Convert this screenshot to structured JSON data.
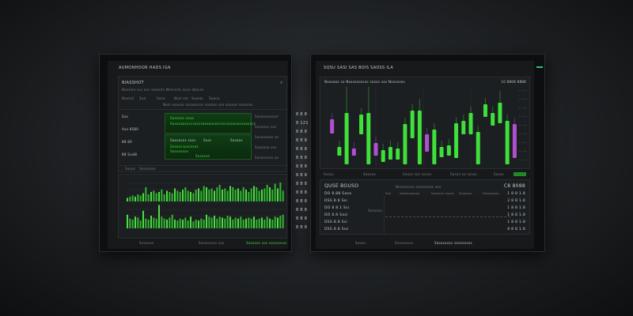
{
  "left": {
    "title": "AUMONHOOR HADS IGA",
    "panel_title": "BIASSHOT",
    "panel_subtitle": "Nsoslse ssc osc soascts Mrerscts scso sbocss",
    "filters": [
      "Nosnol",
      "Soa",
      "Saca",
      "Nosl sol",
      "Soasio",
      "Soaca"
    ],
    "header_strip": "Nosl soasos sosaoscos sosoos sos soasos sosasos",
    "side_rows": [
      "Sso",
      "Aso 8580",
      "88 80",
      "88 Sso8l"
    ],
    "box1": {
      "title": "Sasasos sosa",
      "line": "Sasosaososcsoscsaosoososcoscosoosocsoosocs"
    },
    "box2": {
      "cols": [
        "Saosasos sosc",
        "Sosc",
        "Sosaos"
      ],
      "line1": "Sososcsoscosos",
      "line2": "Sasososos",
      "line3": "Sosasos"
    },
    "right_rows": [
      "Sasososososl",
      "Sososos sos",
      "Sosososos so",
      "Soasoso sos",
      "Sosasosos so"
    ],
    "tabs": [
      "Sasos",
      "Sasosaso"
    ],
    "chart_footer": [
      "Sososos",
      "Sasososos sos",
      "Sasosos sos sosososos"
    ],
    "bar_chart_top": [
      3,
      4,
      5,
      4,
      6,
      5,
      7,
      12,
      6,
      8,
      9,
      7,
      8,
      10,
      6,
      9,
      8,
      7,
      11,
      9,
      8,
      10,
      12,
      9,
      8,
      7,
      10,
      11,
      9,
      13,
      12,
      10,
      11,
      9,
      12,
      14,
      10,
      11,
      9,
      13,
      12,
      10,
      11,
      9,
      12,
      10,
      8,
      11,
      13,
      12,
      9,
      10,
      11,
      14,
      12,
      10,
      15,
      11,
      16,
      9
    ],
    "bar_chart_bottom": [
      14,
      10,
      9,
      12,
      11,
      8,
      18,
      10,
      9,
      13,
      11,
      10,
      24,
      12,
      10,
      9,
      11,
      14,
      9,
      8,
      10,
      9,
      11,
      8,
      12,
      7,
      9,
      8,
      10,
      9,
      14,
      12,
      11,
      13,
      10,
      12,
      11,
      10,
      13,
      12,
      9,
      11,
      10,
      12,
      9,
      10,
      11,
      10,
      12,
      9,
      10,
      11,
      9,
      12,
      10,
      9,
      12,
      11,
      13,
      14
    ]
  },
  "middle_column": [
    "8 8 8",
    "8 121",
    "8 8 8",
    "8 8 8",
    "8 8 8",
    "8 8 8",
    "8 8 8",
    "8 8 8",
    "8 8 8",
    "8 8 8",
    "8 8 8",
    "8 8 8",
    "8 8 8",
    "8 8 8"
  ],
  "right": {
    "title": "SQSU SASI SAS BOIS SAOSS ILA",
    "chart_title": "Nosoaos so Nsosososcos sosos sos Nsososos",
    "chart_value": "10 8808 8888",
    "chart_data": {
      "type": "candlestick",
      "up_color": "#3ee03a",
      "down_color": "#b050d0",
      "candles": [
        {
          "o": 41,
          "c": 59,
          "dir": "down"
        },
        {
          "o": 13,
          "c": 24,
          "dir": "up"
        },
        {
          "o": 2,
          "c": 67,
          "h": 100,
          "dir": "up"
        },
        {
          "o": 13,
          "c": 22,
          "dir": "down"
        },
        {
          "o": 40,
          "c": 65,
          "dir": "up"
        },
        {
          "o": 2,
          "c": 67,
          "h": 100,
          "dir": "up"
        },
        {
          "o": 13,
          "c": 29,
          "dir": "down"
        },
        {
          "o": 5,
          "c": 20,
          "dir": "up"
        },
        {
          "o": 8,
          "c": 24,
          "dir": "up"
        },
        {
          "o": 8,
          "c": 22,
          "dir": "up"
        },
        {
          "o": 2,
          "c": 53,
          "dir": "up"
        },
        {
          "o": 35,
          "c": 70,
          "dir": "up"
        },
        {
          "o": 2,
          "c": 70,
          "h": 85,
          "dir": "up"
        },
        {
          "o": 18,
          "c": 40,
          "dir": "down"
        },
        {
          "o": 2,
          "c": 46,
          "dir": "up"
        },
        {
          "o": 11,
          "c": 24,
          "dir": "up"
        },
        {
          "o": 13,
          "c": 26,
          "dir": "up"
        },
        {
          "o": 10,
          "c": 54,
          "dir": "up"
        },
        {
          "o": 40,
          "c": 57,
          "dir": "up"
        },
        {
          "o": 40,
          "c": 67,
          "dir": "up"
        },
        {
          "o": 2,
          "c": 43,
          "dir": "up"
        },
        {
          "o": 62,
          "c": 78,
          "dir": "up"
        },
        {
          "o": 51,
          "c": 67,
          "dir": "up"
        },
        {
          "o": 54,
          "c": 80,
          "h": 95,
          "dir": "up"
        },
        {
          "o": 2,
          "c": 57,
          "dir": "up"
        },
        {
          "o": 10,
          "c": 53,
          "dir": "down"
        }
      ],
      "ylim": [
        0,
        100
      ]
    },
    "axis_labels": [
      "-- ---",
      "-- ---",
      "-- ---",
      "-- ---",
      "-- ---",
      "-- ---",
      "-- ---",
      "-- ---",
      "-- ---"
    ],
    "toolbar": [
      "Sosos",
      "Saosos",
      "Sasos sos sosos",
      "Sasos so sosos",
      "Sosos"
    ],
    "toolbar_button": "",
    "table_title": "QUSE BOUSO",
    "table_header": "Nosasosos sosososos sos",
    "table_value": "C8 8088",
    "legend": [
      "Sos",
      "Sasosososos",
      "Sososos sosos",
      "Sososos",
      "Sasososos"
    ],
    "rows": [
      {
        "label": "DO 8.88  Sasa",
        "value": "1 8 8 1.8"
      },
      {
        "label": "DSS 8.8  Ssi",
        "value": "2 8 8 1.8"
      },
      {
        "label": "DO 8 8.1  Ssi",
        "value": "1 8 8 1.8"
      },
      {
        "label": "DO 8.8  Sasi",
        "value": "1 8 8 1.8"
      },
      {
        "label": "DSS 8.8  Ssi",
        "value": "1 8 8 1.8"
      },
      {
        "label": "DSS 8.8  Sso",
        "value": "8 8 8 1.8"
      }
    ],
    "inner_label": "Sasosos",
    "footer": [
      "Sasos",
      "Sososasos",
      "Sasososos sosososos"
    ],
    "status_color": "#2fbf7a"
  }
}
